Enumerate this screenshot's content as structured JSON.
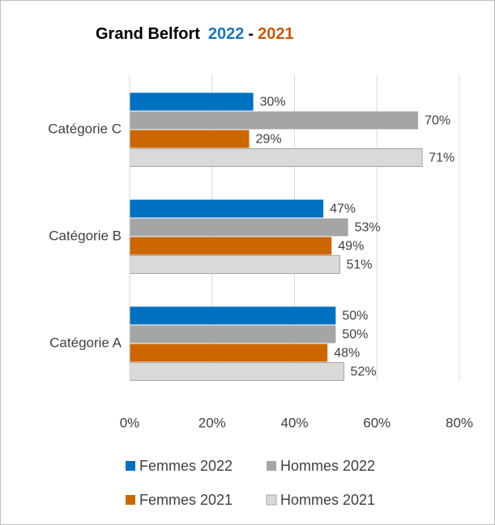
{
  "chart_data": {
    "type": "barh",
    "title": [
      {
        "text": "Grand Belfort",
        "color": "#000000"
      },
      {
        "text": "2022",
        "color": "#1b75bb"
      },
      {
        "text": "-",
        "color": "#000000"
      },
      {
        "text": "2021",
        "color": "#c55a11"
      }
    ],
    "categories": [
      "Catégorie A",
      "Catégorie B",
      "Catégorie C"
    ],
    "series": [
      {
        "name": "Femmes 2022",
        "color": "#0070c0",
        "values": [
          50,
          47,
          30
        ],
        "value_labels": [
          "50%",
          "47%",
          "30%"
        ]
      },
      {
        "name": "Hommes 2022",
        "color": "#a5a5a5",
        "values": [
          50,
          53,
          70
        ],
        "value_labels": [
          "50%",
          "53%",
          "70%"
        ]
      },
      {
        "name": "Femmes 2021",
        "color": "#cc6600",
        "values": [
          48,
          49,
          29
        ],
        "value_labels": [
          "48%",
          "49%",
          "29%"
        ]
      },
      {
        "name": "Hommes 2021",
        "color": "#d9d9d9",
        "values": [
          52,
          51,
          71
        ],
        "value_labels": [
          "52%",
          "51%",
          "71%"
        ]
      }
    ],
    "xlim": [
      0,
      80
    ],
    "xticks": [
      {
        "value": 0,
        "label": "0%"
      },
      {
        "value": 20,
        "label": "20%"
      },
      {
        "value": 40,
        "label": "40%"
      },
      {
        "value": 60,
        "label": "60%"
      },
      {
        "value": 80,
        "label": "80%"
      }
    ],
    "grid": true,
    "legend": "bottom"
  }
}
